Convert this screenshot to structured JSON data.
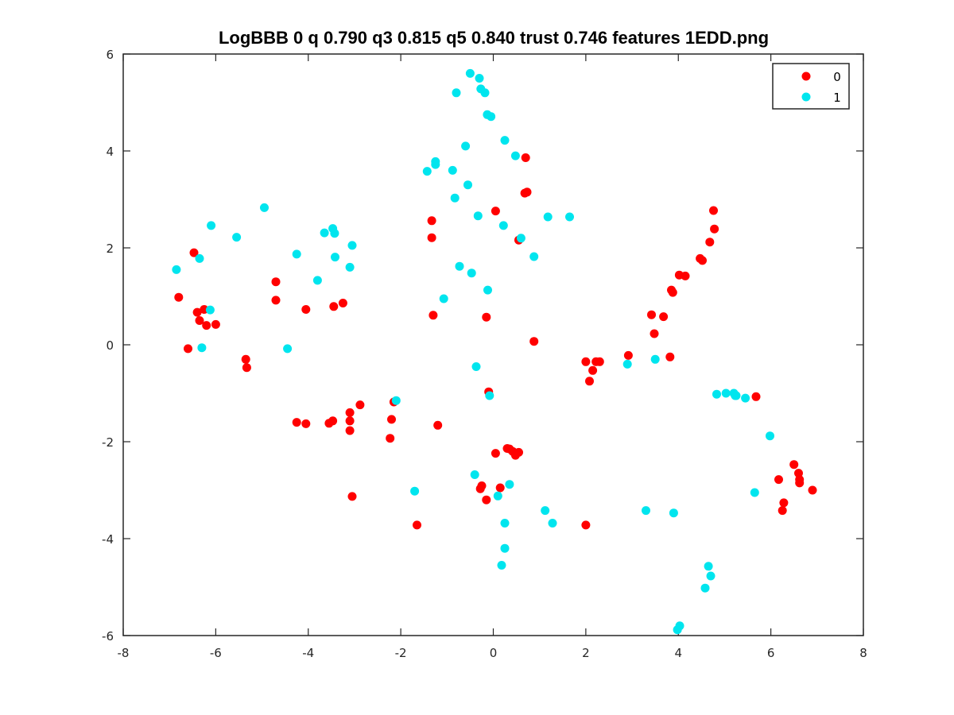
{
  "chart_data": {
    "type": "scatter",
    "title": "LogBBB 0 q 0.790 q3 0.815 q5 0.840 trust 0.746 features 1EDD.png",
    "xlabel": "",
    "ylabel": "",
    "xlim": [
      -8,
      8
    ],
    "ylim": [
      -6,
      6
    ],
    "x_ticks": [
      -8,
      -6,
      -4,
      -2,
      0,
      2,
      4,
      6,
      8
    ],
    "y_ticks": [
      -6,
      -4,
      -2,
      0,
      2,
      4,
      6
    ],
    "x_tick_labels": [
      "-8",
      "-6",
      "-4",
      "-2",
      "0",
      "2",
      "4",
      "6",
      "8"
    ],
    "y_tick_labels": [
      "-6",
      "-4",
      "-2",
      "0",
      "2",
      "4",
      "6"
    ],
    "grid": false,
    "legend_position": "top-right",
    "series": [
      {
        "name": "0",
        "color": "#ff0000",
        "points": [
          [
            -6.8,
            0.98
          ],
          [
            -6.6,
            -0.08
          ],
          [
            -6.47,
            1.9
          ],
          [
            -6.4,
            0.67
          ],
          [
            -6.35,
            0.5
          ],
          [
            -6.25,
            0.73
          ],
          [
            -6.2,
            0.4
          ],
          [
            -6.0,
            0.42
          ],
          [
            -5.35,
            -0.3
          ],
          [
            -5.33,
            -0.47
          ],
          [
            -4.7,
            1.3
          ],
          [
            -4.7,
            0.92
          ],
          [
            -4.25,
            -1.6
          ],
          [
            -4.05,
            0.73
          ],
          [
            -4.05,
            -1.63
          ],
          [
            -3.55,
            -1.62
          ],
          [
            -3.47,
            -1.57
          ],
          [
            -3.45,
            0.79
          ],
          [
            -3.25,
            0.86
          ],
          [
            -3.1,
            -1.4
          ],
          [
            -3.1,
            -1.57
          ],
          [
            -3.1,
            -1.77
          ],
          [
            -3.05,
            -3.13
          ],
          [
            -2.88,
            -1.24
          ],
          [
            -2.23,
            -1.93
          ],
          [
            -2.2,
            -1.54
          ],
          [
            -2.15,
            -1.18
          ],
          [
            -1.65,
            -3.72
          ],
          [
            -1.33,
            2.56
          ],
          [
            -1.33,
            2.21
          ],
          [
            -1.3,
            0.61
          ],
          [
            -1.2,
            -1.66
          ],
          [
            -0.28,
            -2.97
          ],
          [
            -0.25,
            -2.91
          ],
          [
            -0.15,
            0.57
          ],
          [
            -0.15,
            -3.2
          ],
          [
            -0.1,
            -0.97
          ],
          [
            0.05,
            2.76
          ],
          [
            0.05,
            -2.24
          ],
          [
            0.15,
            -2.95
          ],
          [
            0.3,
            -2.14
          ],
          [
            0.35,
            -2.15
          ],
          [
            0.42,
            -2.2
          ],
          [
            0.48,
            -2.28
          ],
          [
            0.55,
            -2.22
          ],
          [
            0.55,
            2.16
          ],
          [
            0.68,
            3.13
          ],
          [
            0.7,
            3.86
          ],
          [
            0.73,
            3.15
          ],
          [
            0.88,
            0.07
          ],
          [
            2.0,
            -0.35
          ],
          [
            2.0,
            -3.72
          ],
          [
            2.08,
            -0.75
          ],
          [
            2.15,
            -0.53
          ],
          [
            2.22,
            -0.35
          ],
          [
            2.3,
            -0.35
          ],
          [
            2.92,
            -0.22
          ],
          [
            3.42,
            0.62
          ],
          [
            3.48,
            0.23
          ],
          [
            3.68,
            0.58
          ],
          [
            3.82,
            -0.25
          ],
          [
            3.85,
            1.13
          ],
          [
            3.88,
            1.08
          ],
          [
            4.02,
            1.44
          ],
          [
            4.15,
            1.42
          ],
          [
            4.47,
            1.78
          ],
          [
            4.52,
            1.74
          ],
          [
            4.68,
            2.12
          ],
          [
            4.76,
            2.77
          ],
          [
            4.78,
            2.39
          ],
          [
            5.68,
            -1.07
          ],
          [
            6.17,
            -2.78
          ],
          [
            6.25,
            -3.42
          ],
          [
            6.28,
            -3.26
          ],
          [
            6.5,
            -2.47
          ],
          [
            6.6,
            -2.65
          ],
          [
            6.62,
            -2.78
          ],
          [
            6.62,
            -2.85
          ],
          [
            6.9,
            -3.0
          ]
        ]
      },
      {
        "name": "1",
        "color": "#00e5ee",
        "points": [
          [
            -6.85,
            1.55
          ],
          [
            -6.35,
            1.78
          ],
          [
            -6.3,
            -0.06
          ],
          [
            -6.12,
            0.72
          ],
          [
            -6.1,
            2.46
          ],
          [
            -5.55,
            2.22
          ],
          [
            -4.95,
            2.83
          ],
          [
            -4.45,
            -0.08
          ],
          [
            -4.25,
            1.87
          ],
          [
            -3.8,
            1.33
          ],
          [
            -3.65,
            2.31
          ],
          [
            -3.47,
            2.4
          ],
          [
            -3.43,
            2.3
          ],
          [
            -3.42,
            1.81
          ],
          [
            -3.1,
            1.6
          ],
          [
            -3.05,
            2.05
          ],
          [
            -2.1,
            -1.15
          ],
          [
            -1.7,
            -3.02
          ],
          [
            -1.43,
            3.58
          ],
          [
            -1.25,
            3.72
          ],
          [
            -1.25,
            3.78
          ],
          [
            -1.07,
            0.95
          ],
          [
            -0.88,
            3.6
          ],
          [
            -0.83,
            3.03
          ],
          [
            -0.8,
            5.2
          ],
          [
            -0.73,
            1.62
          ],
          [
            -0.6,
            4.1
          ],
          [
            -0.55,
            3.3
          ],
          [
            -0.5,
            5.6
          ],
          [
            -0.47,
            1.48
          ],
          [
            -0.4,
            -2.68
          ],
          [
            -0.37,
            -0.45
          ],
          [
            -0.33,
            2.66
          ],
          [
            -0.3,
            5.5
          ],
          [
            -0.27,
            5.28
          ],
          [
            -0.18,
            5.2
          ],
          [
            -0.13,
            4.75
          ],
          [
            -0.12,
            1.13
          ],
          [
            -0.08,
            -1.05
          ],
          [
            -0.05,
            4.71
          ],
          [
            0.1,
            -3.12
          ],
          [
            0.18,
            -4.55
          ],
          [
            0.22,
            2.46
          ],
          [
            0.25,
            -4.2
          ],
          [
            0.25,
            -3.68
          ],
          [
            0.25,
            4.22
          ],
          [
            0.35,
            -2.88
          ],
          [
            0.48,
            3.9
          ],
          [
            0.6,
            2.2
          ],
          [
            0.88,
            1.82
          ],
          [
            1.12,
            -3.42
          ],
          [
            1.18,
            2.64
          ],
          [
            1.28,
            -3.68
          ],
          [
            1.65,
            2.64
          ],
          [
            2.9,
            -0.4
          ],
          [
            3.3,
            -3.42
          ],
          [
            3.5,
            -0.3
          ],
          [
            3.9,
            -3.47
          ],
          [
            3.98,
            -5.88
          ],
          [
            4.03,
            -5.8
          ],
          [
            4.58,
            -5.02
          ],
          [
            4.65,
            -4.57
          ],
          [
            4.7,
            -4.77
          ],
          [
            4.83,
            -1.02
          ],
          [
            5.03,
            -1.0
          ],
          [
            5.2,
            -1.0
          ],
          [
            5.23,
            -1.05
          ],
          [
            5.25,
            -1.05
          ],
          [
            5.45,
            -1.1
          ],
          [
            5.98,
            -1.88
          ],
          [
            5.65,
            -3.05
          ]
        ]
      }
    ]
  }
}
